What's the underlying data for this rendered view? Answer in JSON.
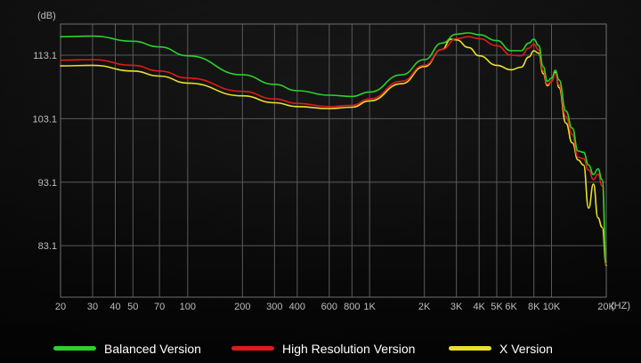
{
  "chart_data": {
    "type": "line",
    "title": "",
    "xlabel": "(HZ)",
    "ylabel": "(dB)",
    "x_scale": "log",
    "xlim": [
      20,
      20000
    ],
    "ylim": [
      75,
      118
    ],
    "grid": true,
    "legend_position": "bottom",
    "x_ticks": [
      {
        "value": 20,
        "label": "20"
      },
      {
        "value": 30,
        "label": "30"
      },
      {
        "value": 40,
        "label": "40"
      },
      {
        "value": 50,
        "label": "50"
      },
      {
        "value": 70,
        "label": "70"
      },
      {
        "value": 100,
        "label": "100"
      },
      {
        "value": 200,
        "label": "200"
      },
      {
        "value": 300,
        "label": "300"
      },
      {
        "value": 400,
        "label": "400"
      },
      {
        "value": 600,
        "label": "600"
      },
      {
        "value": 800,
        "label": "800"
      },
      {
        "value": 1000,
        "label": "1K"
      },
      {
        "value": 2000,
        "label": "2K"
      },
      {
        "value": 3000,
        "label": "3K"
      },
      {
        "value": 4000,
        "label": "4K"
      },
      {
        "value": 5000,
        "label": "5K"
      },
      {
        "value": 6000,
        "label": "6K"
      },
      {
        "value": 8000,
        "label": "8K"
      },
      {
        "value": 10000,
        "label": "10K"
      },
      {
        "value": 20000,
        "label": "20K"
      }
    ],
    "y_ticks": [
      {
        "value": 113.1,
        "label": "113.1"
      },
      {
        "value": 103.1,
        "label": "103.1"
      },
      {
        "value": 93.1,
        "label": "93.1"
      },
      {
        "value": 83.1,
        "label": "83.1"
      }
    ],
    "series": [
      {
        "name": "Balanced Version",
        "color": "#2bd12b",
        "points": [
          [
            20,
            116.0
          ],
          [
            30,
            116.1
          ],
          [
            50,
            115.3
          ],
          [
            70,
            114.4
          ],
          [
            100,
            113.0
          ],
          [
            200,
            110.0
          ],
          [
            300,
            108.5
          ],
          [
            400,
            107.5
          ],
          [
            600,
            106.8
          ],
          [
            800,
            106.6
          ],
          [
            1000,
            107.3
          ],
          [
            1500,
            110.0
          ],
          [
            2000,
            112.4
          ],
          [
            2500,
            115.0
          ],
          [
            3000,
            116.4
          ],
          [
            3500,
            116.6
          ],
          [
            4000,
            116.3
          ],
          [
            5000,
            115.4
          ],
          [
            6000,
            113.8
          ],
          [
            6800,
            113.8
          ],
          [
            7500,
            115.0
          ],
          [
            8000,
            115.6
          ],
          [
            8500,
            114.6
          ],
          [
            9000,
            111.3
          ],
          [
            9500,
            109.0
          ],
          [
            10000,
            109.5
          ],
          [
            10500,
            110.7
          ],
          [
            11000,
            109.2
          ],
          [
            12000,
            104.3
          ],
          [
            13000,
            101.6
          ],
          [
            14000,
            98.0
          ],
          [
            15000,
            97.8
          ],
          [
            16000,
            95.8
          ],
          [
            17000,
            94.3
          ],
          [
            18000,
            95.2
          ],
          [
            19000,
            93.5
          ],
          [
            20000,
            80.5
          ]
        ]
      },
      {
        "name": "High Resolution Version",
        "color": "#e11a1a",
        "points": [
          [
            20,
            112.3
          ],
          [
            30,
            112.4
          ],
          [
            50,
            111.5
          ],
          [
            70,
            110.6
          ],
          [
            100,
            109.5
          ],
          [
            200,
            107.4
          ],
          [
            300,
            106.2
          ],
          [
            400,
            105.5
          ],
          [
            600,
            105.0
          ],
          [
            800,
            105.2
          ],
          [
            1000,
            106.2
          ],
          [
            1500,
            109.0
          ],
          [
            2000,
            111.5
          ],
          [
            2500,
            114.0
          ],
          [
            3000,
            115.7
          ],
          [
            3500,
            116.0
          ],
          [
            4000,
            115.7
          ],
          [
            5000,
            114.6
          ],
          [
            6000,
            113.1
          ],
          [
            6800,
            113.0
          ],
          [
            7500,
            114.2
          ],
          [
            8000,
            114.8
          ],
          [
            8500,
            113.9
          ],
          [
            9000,
            110.6
          ],
          [
            9500,
            108.5
          ],
          [
            10000,
            109.0
          ],
          [
            10500,
            110.2
          ],
          [
            11000,
            108.4
          ],
          [
            12000,
            103.4
          ],
          [
            13000,
            100.6
          ],
          [
            14000,
            97.0
          ],
          [
            15000,
            96.8
          ],
          [
            16000,
            95.0
          ],
          [
            17000,
            93.5
          ],
          [
            18000,
            94.4
          ],
          [
            19000,
            92.5
          ],
          [
            20000,
            80.2
          ]
        ]
      },
      {
        "name": "X Version",
        "color": "#e8e029",
        "points": [
          [
            20,
            111.4
          ],
          [
            30,
            111.5
          ],
          [
            50,
            110.6
          ],
          [
            70,
            109.8
          ],
          [
            100,
            108.7
          ],
          [
            200,
            106.7
          ],
          [
            300,
            105.6
          ],
          [
            400,
            105.0
          ],
          [
            600,
            104.7
          ],
          [
            800,
            104.9
          ],
          [
            1000,
            105.9
          ],
          [
            1500,
            108.6
          ],
          [
            2000,
            111.3
          ],
          [
            2500,
            114.0
          ],
          [
            2800,
            115.6
          ],
          [
            3000,
            115.5
          ],
          [
            3500,
            114.3
          ],
          [
            4000,
            113.0
          ],
          [
            5000,
            111.5
          ],
          [
            6000,
            110.8
          ],
          [
            6800,
            111.2
          ],
          [
            7500,
            112.8
          ],
          [
            8000,
            113.8
          ],
          [
            8500,
            113.4
          ],
          [
            9000,
            110.2
          ],
          [
            9500,
            108.3
          ],
          [
            10000,
            109.0
          ],
          [
            10500,
            110.4
          ],
          [
            11000,
            108.0
          ],
          [
            12000,
            102.4
          ],
          [
            13000,
            99.3
          ],
          [
            14000,
            96.6
          ],
          [
            15000,
            95.8
          ],
          [
            16000,
            89.0
          ],
          [
            17000,
            92.8
          ],
          [
            18000,
            87.5
          ],
          [
            19000,
            86.0
          ],
          [
            20000,
            80.0
          ]
        ]
      }
    ]
  }
}
